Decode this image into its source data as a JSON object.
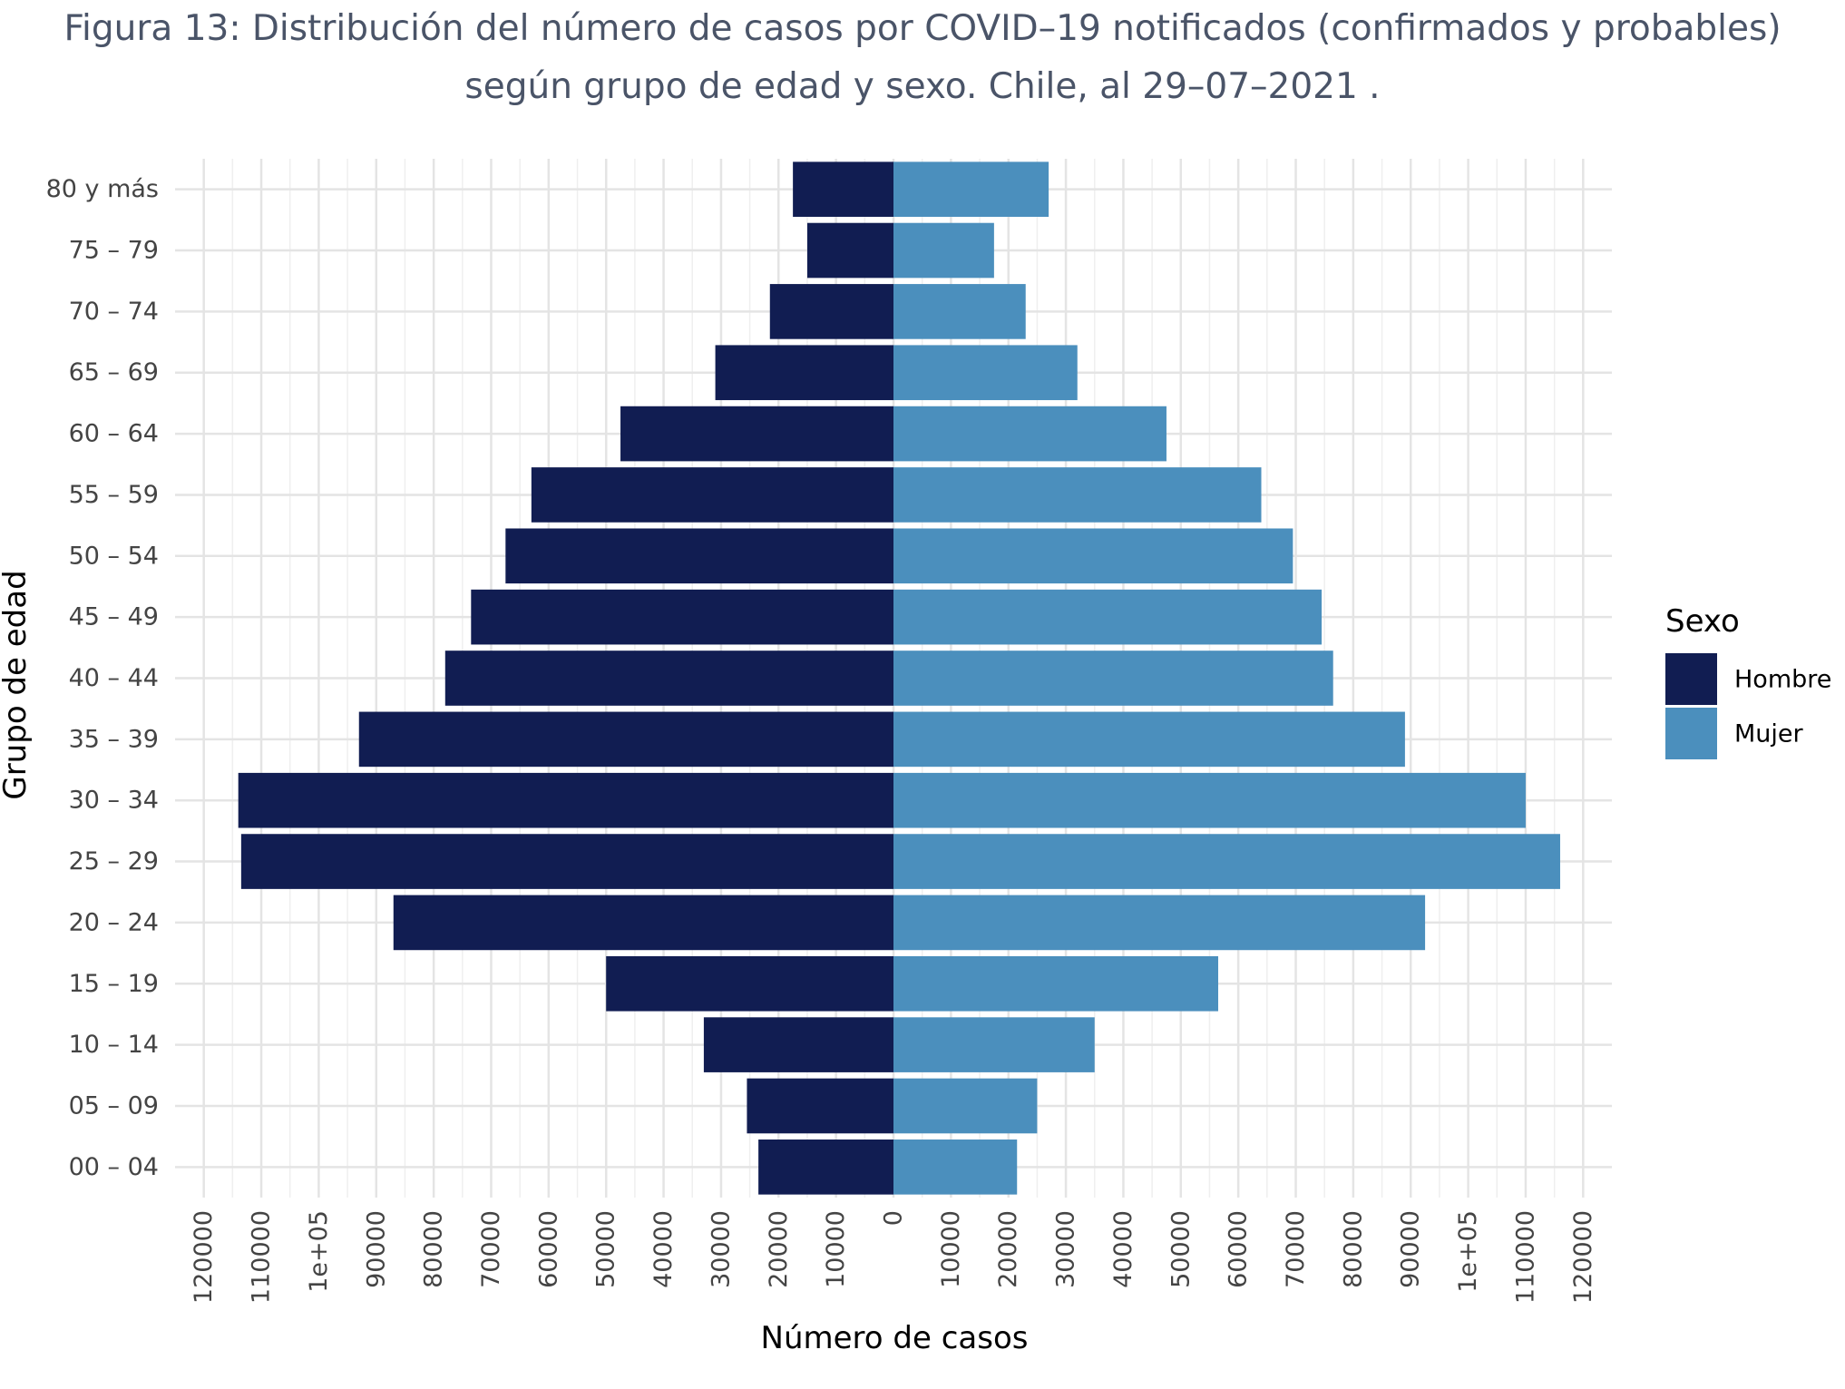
{
  "chart_data": {
    "type": "bar",
    "orientation": "horizontal",
    "layout": "population-pyramid",
    "title": "Figura 13: Distribución del número de casos por COVID–19 notificados (confirmados y probables)",
    "subtitle": "según grupo de edad y sexo. Chile, al 29–07–2021 .",
    "xlabel": "Número de casos",
    "ylabel": "Grupo de edad",
    "xlim": [
      -125000,
      125000
    ],
    "x_ticks": [
      {
        "value": -120000,
        "label": "120000"
      },
      {
        "value": -110000,
        "label": "110000"
      },
      {
        "value": -100000,
        "label": "1e+05"
      },
      {
        "value": -90000,
        "label": "90000"
      },
      {
        "value": -80000,
        "label": "80000"
      },
      {
        "value": -70000,
        "label": "70000"
      },
      {
        "value": -60000,
        "label": "60000"
      },
      {
        "value": -50000,
        "label": "50000"
      },
      {
        "value": -40000,
        "label": "40000"
      },
      {
        "value": -30000,
        "label": "30000"
      },
      {
        "value": -20000,
        "label": "20000"
      },
      {
        "value": -10000,
        "label": "10000"
      },
      {
        "value": 0,
        "label": "0"
      },
      {
        "value": 10000,
        "label": "10000"
      },
      {
        "value": 20000,
        "label": "20000"
      },
      {
        "value": 30000,
        "label": "30000"
      },
      {
        "value": 40000,
        "label": "40000"
      },
      {
        "value": 50000,
        "label": "50000"
      },
      {
        "value": 60000,
        "label": "60000"
      },
      {
        "value": 70000,
        "label": "70000"
      },
      {
        "value": 80000,
        "label": "80000"
      },
      {
        "value": 90000,
        "label": "90000"
      },
      {
        "value": 100000,
        "label": "1e+05"
      },
      {
        "value": 110000,
        "label": "110000"
      },
      {
        "value": 120000,
        "label": "120000"
      }
    ],
    "categories": [
      "80 y más",
      "75 – 79",
      "70 – 74",
      "65 – 69",
      "60 – 64",
      "55 – 59",
      "50 – 54",
      "45 – 49",
      "40 – 44",
      "35 – 39",
      "30 – 34",
      "25 – 29",
      "20 – 24",
      "15 – 19",
      "10 – 14",
      "05 – 09",
      "00 – 04"
    ],
    "series": [
      {
        "name": "Hombre",
        "color": "#111d52",
        "side": "left",
        "values": [
          17500,
          15000,
          21500,
          31000,
          47500,
          63000,
          67500,
          73500,
          78000,
          93000,
          114000,
          113500,
          87000,
          50000,
          33000,
          25500,
          23500
        ]
      },
      {
        "name": "Mujer",
        "color": "#4b8fbd",
        "side": "right",
        "values": [
          27000,
          17500,
          23000,
          32000,
          47500,
          64000,
          69500,
          74500,
          76500,
          89000,
          110000,
          116000,
          92500,
          56500,
          35000,
          25000,
          21500
        ]
      }
    ],
    "legend": {
      "title": "Sexo",
      "position": "right"
    },
    "grid": true
  }
}
